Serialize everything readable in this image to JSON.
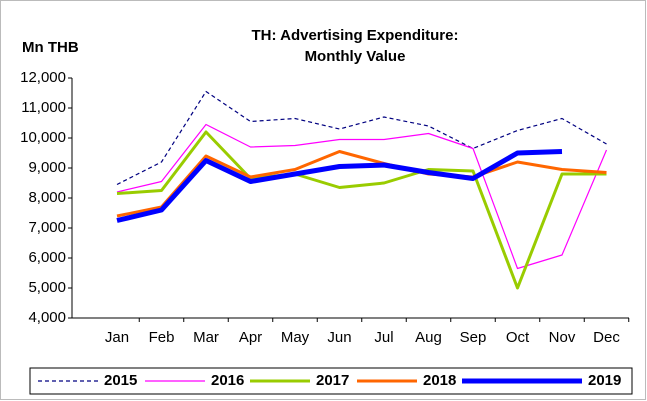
{
  "chart_data": {
    "type": "line",
    "title": [
      "TH: Advertising Expenditure:",
      "Monthly Value"
    ],
    "y_label": "Mn THB",
    "categories": [
      "Jan",
      "Feb",
      "Mar",
      "Apr",
      "May",
      "Jun",
      "Jul",
      "Aug",
      "Sep",
      "Oct",
      "Nov",
      "Dec"
    ],
    "ylim": [
      4000,
      12000
    ],
    "yticks": [
      {
        "value": 4000,
        "label": "4,000"
      },
      {
        "value": 5000,
        "label": "5,000"
      },
      {
        "value": 6000,
        "label": "6,000"
      },
      {
        "value": 7000,
        "label": "7,000"
      },
      {
        "value": 8000,
        "label": "8,000"
      },
      {
        "value": 9000,
        "label": "9,000"
      },
      {
        "value": 10000,
        "label": "10,000"
      },
      {
        "value": 11000,
        "label": "11,000"
      },
      {
        "value": 12000,
        "label": "12,000"
      }
    ],
    "grid": false,
    "legend": "bottom",
    "series": [
      {
        "name": "2015",
        "color": "#000080",
        "line_width": 1.2,
        "line_style": "dashed",
        "values": [
          8450,
          9200,
          11550,
          10550,
          10650,
          10300,
          10700,
          10400,
          9650,
          10250,
          10650,
          9800
        ]
      },
      {
        "name": "2016",
        "color": "#ff00ff",
        "line_width": 1.2,
        "line_style": "solid",
        "values": [
          8200,
          8550,
          10450,
          9700,
          9750,
          9950,
          9950,
          10150,
          9650,
          5650,
          6100,
          9600
        ]
      },
      {
        "name": "2017",
        "color": "#99cc00",
        "line_width": 3,
        "line_style": "solid",
        "values": [
          8150,
          8250,
          10200,
          8650,
          8800,
          8350,
          8500,
          8950,
          8900,
          5000,
          8800,
          8800
        ]
      },
      {
        "name": "2018",
        "color": "#ff6600",
        "line_width": 3,
        "line_style": "solid",
        "values": [
          7400,
          7700,
          9400,
          8700,
          8950,
          9550,
          9150,
          8800,
          8700,
          9200,
          8950,
          8850
        ]
      },
      {
        "name": "2019",
        "color": "#0000ff",
        "line_width": 5,
        "line_style": "solid",
        "values": [
          7250,
          7600,
          9250,
          8550,
          8800,
          9050,
          9100,
          8850,
          8650,
          9500,
          9550,
          null
        ]
      }
    ]
  }
}
